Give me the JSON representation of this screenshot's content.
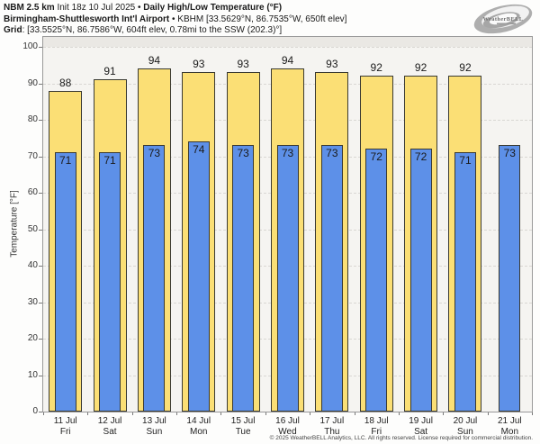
{
  "header": {
    "line1": {
      "model": "NBM 2.5 km",
      "init": " Init 18z 10 Jul 2025 ",
      "sep": "• ",
      "product": "Daily High/Low Temperature (°F)"
    },
    "line2": {
      "station": "Birmingham-Shuttlesworth Int'l Airport",
      "sep": " • ",
      "details": "KBHM [33.5629°N, 86.7535°W, 650ft elev]"
    },
    "line3": {
      "label": "Grid",
      "details": ": [33.5525°N, 86.7586°W, 604ft elev, 0.78mi to the SSW (202.3)°]"
    }
  },
  "logo": {
    "brand": "WeatherBELL"
  },
  "chart_data": {
    "type": "bar",
    "title": "Daily High/Low Temperature (°F)",
    "yaxis_title": "Temperature [°F]",
    "ylim": [
      0,
      100
    ],
    "yticks": [
      0,
      10,
      20,
      30,
      40,
      50,
      60,
      70,
      80,
      90,
      100
    ],
    "grid": "horizontal dashed",
    "legend_position": "none",
    "categories_date": [
      "11 Jul",
      "12 Jul",
      "13 Jul",
      "14 Jul",
      "15 Jul",
      "16 Jul",
      "17 Jul",
      "18 Jul",
      "19 Jul",
      "20 Jul",
      "21 Jul"
    ],
    "categories_day": [
      "Fri",
      "Sat",
      "Sun",
      "Mon",
      "Tue",
      "Wed",
      "Thu",
      "Fri",
      "Sat",
      "Sun",
      "Mon"
    ],
    "series": [
      {
        "name": "Daily High",
        "color": "#FBDF75",
        "values": [
          88,
          91,
          94,
          93,
          93,
          94,
          93,
          92,
          92,
          92,
          null
        ]
      },
      {
        "name": "Daily Low",
        "color": "#5D90E8",
        "values": [
          71,
          71,
          73,
          74,
          73,
          73,
          73,
          72,
          72,
          71,
          73
        ]
      }
    ]
  },
  "colors": {
    "bar_border": "#3A3A32",
    "plot_bg": "#F5F4F1",
    "band_above_100": "#EAE8E4",
    "grid_line": "#D9D7D3",
    "frame": "#999999"
  },
  "footer": {
    "copyright": "© 2025 WeatherBELL Analytics, LLC. All rights reserved. License required for commercial distribution."
  }
}
